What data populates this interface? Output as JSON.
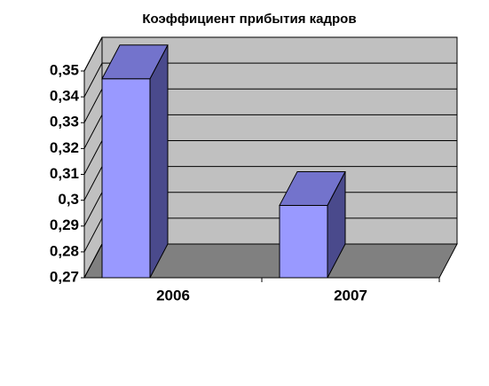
{
  "chart_data": {
    "type": "bar3d",
    "title": "Коэффициент прибытия кадров",
    "categories": [
      "2006",
      "2007"
    ],
    "values": [
      0.347,
      0.298
    ],
    "color": "#9999ff",
    "ylim": [
      0.27,
      0.35
    ],
    "yticks": [
      {
        "value": 0.27,
        "label": "0,27"
      },
      {
        "value": 0.28,
        "label": "0,28"
      },
      {
        "value": 0.29,
        "label": "0,29"
      },
      {
        "value": 0.3,
        "label": "0,3"
      },
      {
        "value": 0.31,
        "label": "0,31"
      },
      {
        "value": 0.32,
        "label": "0,32"
      },
      {
        "value": 0.33,
        "label": "0,33"
      },
      {
        "value": 0.34,
        "label": "0,34"
      },
      {
        "value": 0.35,
        "label": "0,35"
      }
    ],
    "grid": true
  }
}
